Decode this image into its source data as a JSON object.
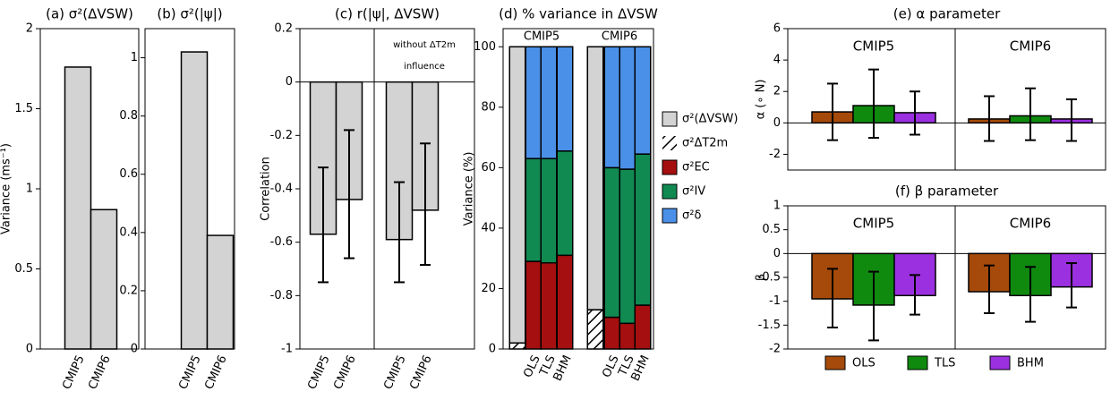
{
  "chart_data": [
    {
      "type": "bar",
      "title": "(a) σ²(ΔVSW)",
      "ylabel": "Variance (ms⁻¹)",
      "categories": [
        "CMIP5",
        "CMIP6"
      ],
      "values": [
        1.76,
        0.87
      ],
      "color": "#d3d3d3",
      "ylim": [
        0,
        2
      ],
      "yticks": [
        0,
        0.5,
        1,
        1.5,
        2
      ]
    },
    {
      "type": "bar",
      "title": "(b) σ²(|ψ|)",
      "categories": [
        "CMIP5",
        "CMIP6"
      ],
      "values": [
        1.02,
        0.39
      ],
      "color": "#d3d3d3",
      "ylim": [
        0,
        1.1
      ],
      "yticks": [
        0,
        0.2,
        0.4,
        0.6,
        0.8,
        1
      ]
    },
    {
      "type": "bar",
      "title": "(c) r(|ψ|, ΔVSW)",
      "ylabel": "Correlation",
      "categories": [
        "CMIP5",
        "CMIP6",
        "CMIP5",
        "CMIP6"
      ],
      "values": [
        -0.57,
        -0.44,
        -0.59,
        -0.48
      ],
      "error_low": [
        -0.75,
        -0.66,
        -0.75,
        -0.685
      ],
      "error_high": [
        -0.32,
        -0.18,
        -0.375,
        -0.23
      ],
      "annotation": [
        "without ΔT2m",
        "influence"
      ],
      "color": "#d3d3d3",
      "ylim": [
        -1,
        0.2
      ],
      "yticks": [
        -1,
        -0.8,
        -0.6,
        -0.4,
        -0.2,
        0,
        0.2
      ]
    },
    {
      "type": "stacked_bar",
      "title": "(d) % variance in ΔVSW",
      "ylabel": "Variance (%)",
      "groups": [
        "CMIP5",
        "CMIP6"
      ],
      "categories": [
        null,
        "OLS",
        "TLS",
        "BHM",
        null,
        "OLS",
        "TLS",
        "BHM"
      ],
      "series": [
        {
          "name": "σ²(ΔVSW)",
          "color": "#d3d3d3",
          "values": [
            98,
            null,
            null,
            null,
            87,
            null,
            null,
            null
          ]
        },
        {
          "name": "σ²ΔT2m",
          "hatch": true,
          "values": [
            2,
            null,
            null,
            null,
            13,
            null,
            null,
            null
          ]
        },
        {
          "name": "σ²EC",
          "color": "#a50f0f",
          "values": [
            null,
            29,
            28.5,
            31,
            null,
            10.5,
            8.5,
            14.5
          ]
        },
        {
          "name": "σ²IV",
          "color": "#118a52",
          "values": [
            null,
            34,
            34.5,
            34.5,
            null,
            49.5,
            51,
            50
          ]
        },
        {
          "name": "σ²δ",
          "color": "#4a90e8",
          "values": [
            null,
            37,
            37,
            34.5,
            null,
            40,
            40.5,
            35.5
          ]
        }
      ],
      "legend": "right",
      "ylim": [
        0,
        106
      ],
      "yticks": [
        0,
        20,
        40,
        60,
        80,
        100
      ]
    },
    {
      "type": "grouped_bar",
      "title": "(e) α parameter",
      "ylabel": "α (∘ N)",
      "groups": [
        "CMIP5",
        "CMIP6"
      ],
      "series": [
        {
          "name": "OLS",
          "color": "#a54a0a",
          "values": [
            0.7,
            0.25
          ],
          "error_low": [
            -1.1,
            -1.15
          ],
          "error_high": [
            2.5,
            1.7
          ]
        },
        {
          "name": "TLS",
          "color": "#0f8a0f",
          "values": [
            1.1,
            0.45
          ],
          "error_low": [
            -0.95,
            -1.1
          ],
          "error_high": [
            3.4,
            2.2
          ]
        },
        {
          "name": "BHM",
          "color": "#9b30e0",
          "values": [
            0.65,
            0.25
          ],
          "error_low": [
            -0.75,
            -1.15
          ],
          "error_high": [
            2.0,
            1.5
          ]
        }
      ],
      "legend": "none",
      "ylim": [
        -3,
        6
      ],
      "yticks": [
        -2,
        0,
        2,
        4,
        6
      ]
    },
    {
      "type": "grouped_bar",
      "title": "(f) β parameter",
      "ylabel": "β",
      "groups": [
        "CMIP5",
        "CMIP6"
      ],
      "series": [
        {
          "name": "OLS",
          "color": "#a54a0a",
          "values": [
            -0.95,
            -0.8
          ],
          "error_low": [
            -1.55,
            -1.25
          ],
          "error_high": [
            -0.32,
            -0.25
          ]
        },
        {
          "name": "TLS",
          "color": "#0f8a0f",
          "values": [
            -1.08,
            -0.88
          ],
          "error_low": [
            -1.82,
            -1.43
          ],
          "error_high": [
            -0.38,
            -0.28
          ]
        },
        {
          "name": "BHM",
          "color": "#9b30e0",
          "values": [
            -0.88,
            -0.7
          ],
          "error_low": [
            -1.28,
            -1.13
          ],
          "error_high": [
            -0.45,
            -0.2
          ]
        }
      ],
      "legend": "bottom",
      "ylim": [
        -2,
        1
      ],
      "yticks": [
        1,
        0.5,
        0,
        -0.5,
        -1,
        -1.5,
        -2
      ]
    }
  ]
}
